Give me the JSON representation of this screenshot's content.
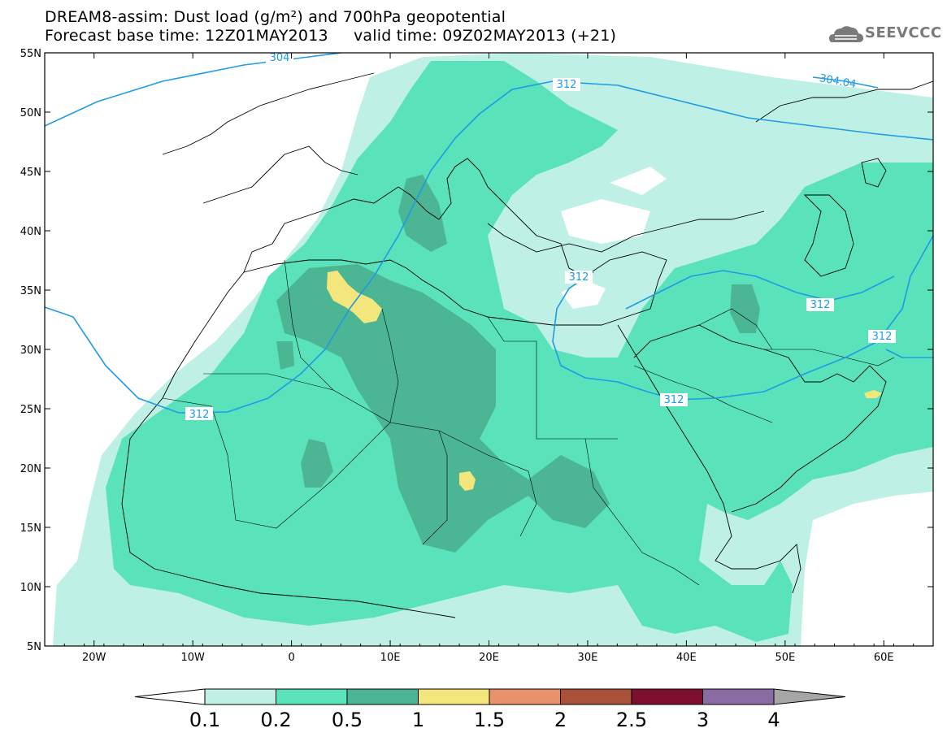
{
  "title": {
    "line1": "DREAM8-assim: Dust load (g/m²) and 700hPa geopotential",
    "line2": "Forecast base time: 12Z01MAY2013     valid time: 09Z02MAY2013 (+21)"
  },
  "logo": {
    "icon": "cloud-icon",
    "text": "SEEVCCC"
  },
  "map": {
    "lon_range": [
      -25,
      65
    ],
    "lat_range": [
      5,
      55
    ],
    "lat_ticks": [
      "55N",
      "50N",
      "45N",
      "40N",
      "35N",
      "30N",
      "25N",
      "20N",
      "15N",
      "10N",
      "5N"
    ],
    "lon_ticks": [
      "20W",
      "10W",
      "0",
      "10E",
      "20E",
      "30E",
      "40E",
      "50E",
      "60E"
    ],
    "contour_labels": [
      "304",
      "312",
      "312",
      "312",
      "312",
      "312",
      "304.04"
    ]
  },
  "colorbar": {
    "levels": [
      "0.1",
      "0.2",
      "0.5",
      "1",
      "1.5",
      "2",
      "2.5",
      "3",
      "4"
    ],
    "colors": [
      "#ffffff",
      "#bff0e5",
      "#5ae2bb",
      "#4bb594",
      "#f3e67c",
      "#e8916a",
      "#a9503a",
      "#7d0f2e",
      "#8a6aa3",
      "#a6a6a6"
    ]
  },
  "colors": {
    "dust_lt": "#bff0e5",
    "dust_md": "#5ae2bb",
    "dust_dk": "#4bb594",
    "dust_yel": "#f3e67c",
    "contour": "#1e9be6"
  }
}
